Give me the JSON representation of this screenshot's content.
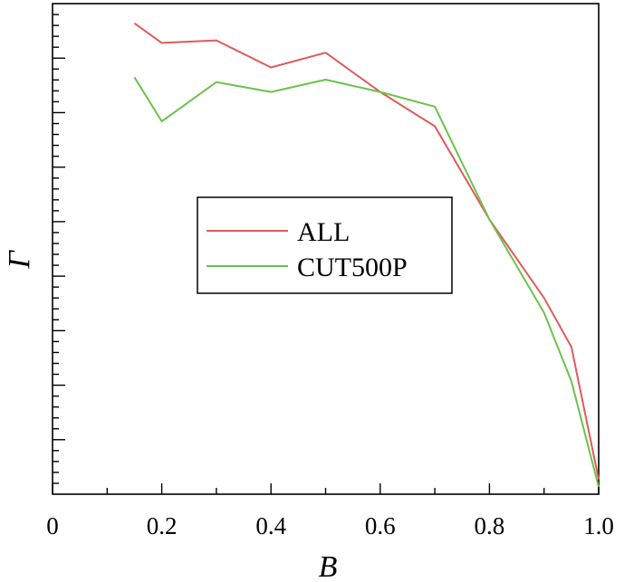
{
  "chart_data": {
    "type": "line",
    "xlabel": "B",
    "ylabel": "Γ",
    "xlim": [
      0,
      1.0
    ],
    "ylim": [
      0,
      1.0
    ],
    "x_ticks": [
      "0",
      "0.2",
      "0.4",
      "0.6",
      "0.8",
      "1.0"
    ],
    "y_tick_labels_shown": false,
    "grid": false,
    "legend_position": "center-left",
    "series": [
      {
        "name": "ALL",
        "color": "#e05a5a",
        "x": [
          0.15,
          0.2,
          0.3,
          0.4,
          0.5,
          0.6,
          0.7,
          0.8,
          0.9,
          0.95,
          1.0
        ],
        "y": [
          0.96,
          0.92,
          0.925,
          0.87,
          0.9,
          0.82,
          0.75,
          0.56,
          0.4,
          0.3,
          0.03
        ]
      },
      {
        "name": "CUT500P",
        "color": "#6cc24a",
        "x": [
          0.15,
          0.2,
          0.3,
          0.4,
          0.5,
          0.6,
          0.7,
          0.8,
          0.9,
          0.95,
          1.0
        ],
        "y": [
          0.85,
          0.76,
          0.84,
          0.82,
          0.845,
          0.82,
          0.79,
          0.56,
          0.37,
          0.23,
          0.015
        ]
      }
    ]
  }
}
